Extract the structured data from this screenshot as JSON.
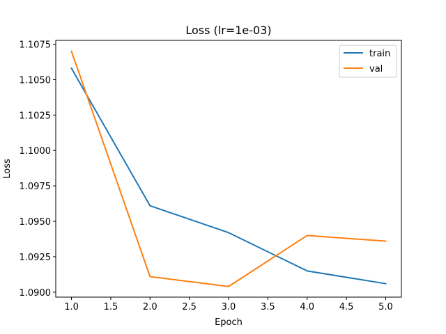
{
  "chart_data": {
    "type": "line",
    "title": "Loss (lr=1e-03)",
    "xlabel": "Epoch",
    "ylabel": "Loss",
    "xlim": [
      0.8,
      5.2
    ],
    "ylim": [
      1.08965,
      1.10777
    ],
    "x_ticks": [
      1.0,
      1.5,
      2.0,
      2.5,
      3.0,
      3.5,
      4.0,
      4.5,
      5.0
    ],
    "x_tick_labels": [
      "1.0",
      "1.5",
      "2.0",
      "2.5",
      "3.0",
      "3.5",
      "4.0",
      "4.5",
      "5.0"
    ],
    "y_ticks": [
      1.09,
      1.0925,
      1.095,
      1.0975,
      1.1,
      1.1025,
      1.105,
      1.1075
    ],
    "y_tick_labels": [
      "1.0900",
      "1.0925",
      "1.0950",
      "1.0975",
      "1.1000",
      "1.1025",
      "1.1050",
      "1.1075"
    ],
    "grid": false,
    "legend_position": "top-right",
    "x": [
      1.0,
      2.0,
      3.0,
      4.0,
      5.0
    ],
    "series": [
      {
        "name": "train",
        "color": "#1f77b4",
        "values": [
          1.1058,
          1.0961,
          1.0942,
          1.0915,
          1.0906
        ]
      },
      {
        "name": "val",
        "color": "#ff7f0e",
        "values": [
          1.107,
          1.0911,
          1.0904,
          1.094,
          1.0936
        ]
      }
    ]
  }
}
